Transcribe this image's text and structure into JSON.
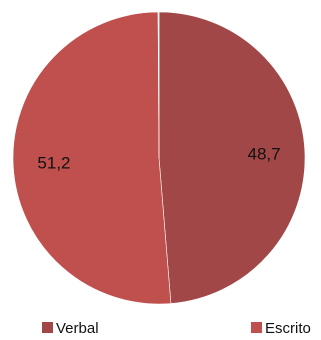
{
  "chart_data": {
    "type": "pie",
    "slices": [
      {
        "label": "Verbal",
        "value": 48.7,
        "value_label": "48,7",
        "color": "#a14747"
      },
      {
        "label": "Escrito",
        "value": 51.2,
        "value_label": "51,2",
        "color": "#c0504d"
      },
      {
        "label": "",
        "value": 0.1,
        "value_label": "",
        "color": "#f0e6e6"
      }
    ],
    "start_angle_deg": 0,
    "direction": "clockwise",
    "legend_position": "bottom"
  }
}
